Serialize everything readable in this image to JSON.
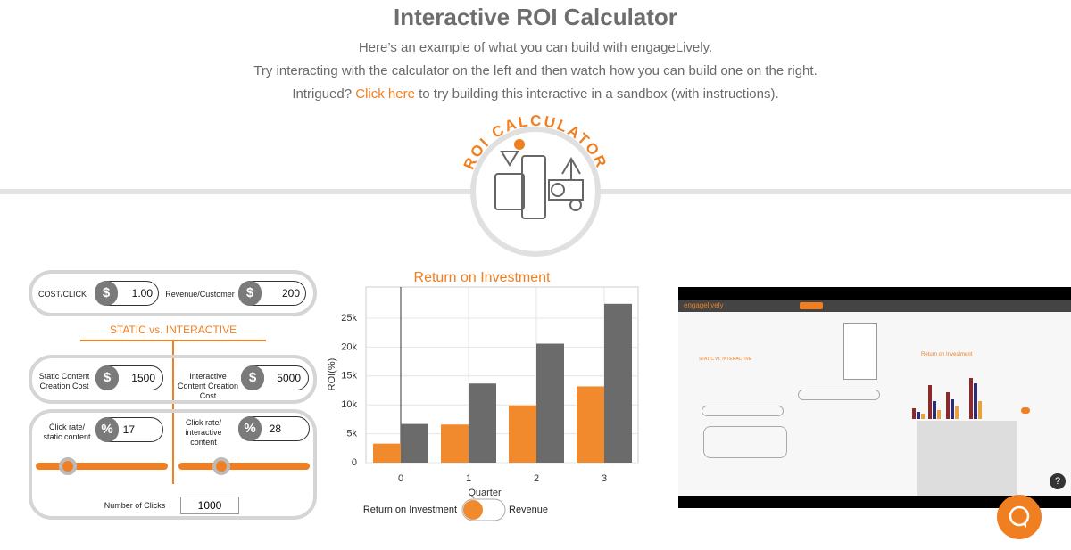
{
  "header": {
    "title": "Interactive ROI Calculator",
    "lines": [
      "Here’s an example of what you can build with engageLively.",
      "Try interacting with the calculator on the left and  then watch how you can build one on the right."
    ],
    "intro_prefix": "Intrigued?",
    "link": "Click here",
    "intro_suffix": "to try building this interactive in a sandbox (with instructions)."
  },
  "badge": {
    "text": "ROI CALCULATOR"
  },
  "calculator": {
    "cost_click": {
      "label": "COST/CLICK",
      "unit": "$",
      "value": "1.00"
    },
    "revenue_customer": {
      "label": "Revenue/Customer",
      "unit": "$",
      "value": "200"
    },
    "section": "STATIC vs. INTERACTIVE",
    "static_cost": {
      "label": "Static Content Creation Cost",
      "unit": "$",
      "value": "1500"
    },
    "interactive_cost": {
      "label": "Interactive  Content Creation Cost",
      "unit": "$",
      "value": "5000"
    },
    "static_rate": {
      "label": "Click rate/ static content",
      "unit": "%",
      "value": "17"
    },
    "interactive_rate": {
      "label": "Click rate/ interactive content",
      "unit": "%",
      "value": "28"
    },
    "clicks": {
      "label": "Number of Clicks",
      "value": "1000"
    }
  },
  "chart_data": {
    "type": "bar",
    "title": "Return on Investment",
    "x_label": "Quarter",
    "y_label": "ROI(%)",
    "categories": [
      "0",
      "1",
      "2",
      "3"
    ],
    "series": [
      {
        "name": "Return on Investment",
        "color": "#f08a2c",
        "values": [
          3300,
          6600,
          9900,
          13200
        ]
      },
      {
        "name": "Revenue",
        "color": "#6b6b6b",
        "values": [
          6700,
          13700,
          20600,
          27500
        ]
      }
    ],
    "ylim": [
      0,
      30400
    ],
    "yticks": [
      0,
      {
        "value": 5000,
        "label": "5k"
      },
      {
        "value": 10000,
        "label": "10k"
      },
      {
        "value": 15000,
        "label": "15k"
      },
      {
        "value": 20000,
        "label": "20k"
      },
      {
        "value": 25000,
        "label": "25k"
      }
    ],
    "grid": true
  },
  "video": {
    "brand": "engagelively",
    "chart_title": "Return on Investment",
    "section": "STATIC vs. INTERACTIVE"
  },
  "help": "?"
}
